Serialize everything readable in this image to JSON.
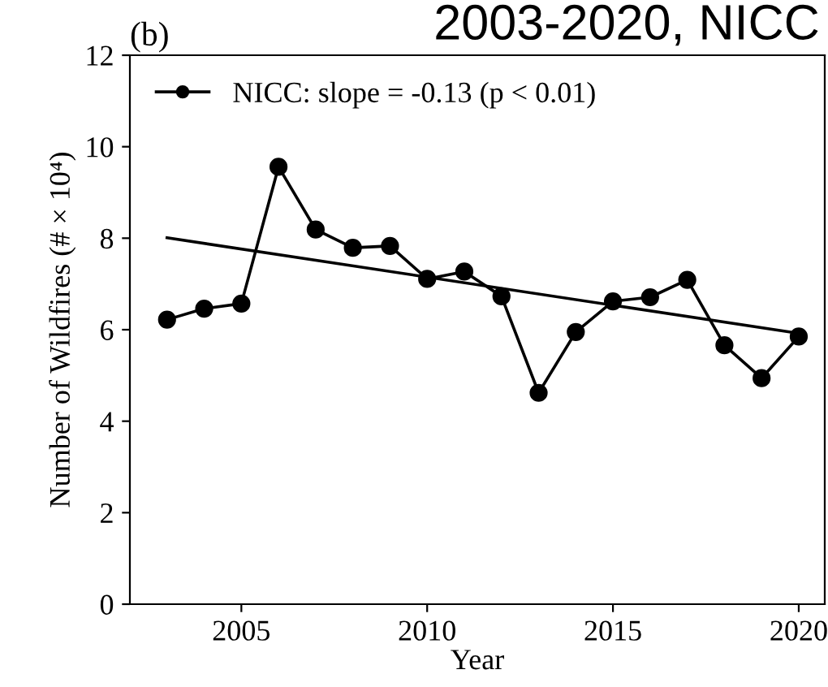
{
  "chart_data": {
    "type": "line",
    "title": "2003-2020, NICC",
    "annotations": [
      "(b)"
    ],
    "xlabel": "Year",
    "ylabel": "Number of Wildfires (# × 10⁴)",
    "x": [
      2003,
      2004,
      2005,
      2006,
      2007,
      2008,
      2009,
      2010,
      2011,
      2012,
      2013,
      2014,
      2015,
      2016,
      2017,
      2018,
      2019,
      2020
    ],
    "series": [
      {
        "name": "NICC: slope = -0.13 (p < 0.01)",
        "color": "#000000",
        "marker": "circle",
        "values": [
          6.22,
          6.46,
          6.57,
          9.56,
          8.19,
          7.79,
          7.83,
          7.11,
          7.27,
          6.73,
          4.62,
          5.95,
          6.62,
          6.71,
          7.09,
          5.66,
          4.94,
          5.85
        ]
      },
      {
        "type": "line",
        "color": "#000000",
        "marker": "none",
        "x": [
          2003,
          2020
        ],
        "values": [
          8.01,
          5.92
        ]
      }
    ],
    "xlim": [
      2002,
      2020.7
    ],
    "xticks": [
      2005,
      2010,
      2015,
      2020
    ],
    "ylim": [
      0,
      12
    ],
    "yticks": [
      0,
      2,
      4,
      6,
      8,
      10,
      12
    ],
    "grid": false,
    "legend": "top left",
    "line_style": "solid"
  }
}
